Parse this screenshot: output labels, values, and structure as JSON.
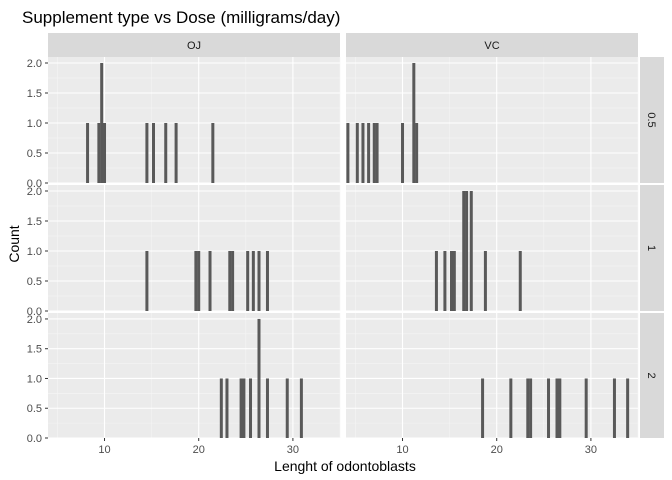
{
  "chart_data": {
    "type": "bar",
    "subtype": "histogram-faceted",
    "title": "Supplement type vs Dose (milligrams/day)",
    "xlabel": "Lenght of odontoblasts",
    "ylabel": "Count",
    "xlim": [
      4,
      35
    ],
    "ylim": [
      0,
      2.1
    ],
    "xticks": [
      10,
      20,
      30
    ],
    "yticks": [
      0,
      0.5,
      1,
      1.5,
      2
    ],
    "ytick_labels": [
      "0.0",
      "0.5",
      "1.0",
      "1.5",
      "2.0"
    ],
    "grid": true,
    "colors": {
      "bar": "#595959",
      "panel": "#ebebeb",
      "strip": "#d9d9d9",
      "grid": "#ffffff"
    },
    "columns": [
      "OJ",
      "VC"
    ],
    "rows": [
      "0.5",
      "1",
      "2"
    ],
    "panels": [
      {
        "supp": "OJ",
        "dose": "0.5",
        "x": [
          8.2,
          9.4,
          9.7,
          10.0,
          14.5,
          15.2,
          16.5,
          17.6,
          21.5
        ],
        "counts": [
          1,
          1,
          2,
          1,
          1,
          1,
          1,
          1,
          1
        ]
      },
      {
        "supp": "VC",
        "dose": "0.5",
        "x": [
          4.2,
          5.2,
          5.8,
          6.4,
          7.0,
          7.3,
          10.0,
          11.2,
          11.5
        ],
        "counts": [
          1,
          1,
          1,
          1,
          1,
          1,
          1,
          2,
          1
        ]
      },
      {
        "supp": "OJ",
        "dose": "1",
        "x": [
          14.5,
          19.7,
          20.0,
          21.2,
          23.3,
          23.6,
          25.2,
          25.8,
          26.4,
          27.3
        ],
        "counts": [
          1,
          1,
          1,
          1,
          1,
          1,
          1,
          1,
          1,
          1
        ]
      },
      {
        "supp": "VC",
        "dose": "1",
        "x": [
          13.6,
          14.5,
          15.2,
          15.5,
          16.5,
          16.8,
          17.3,
          18.8,
          22.5
        ],
        "counts": [
          1,
          1,
          1,
          1,
          2,
          2,
          2,
          1,
          1
        ]
      },
      {
        "supp": "OJ",
        "dose": "2",
        "x": [
          22.4,
          23.0,
          24.5,
          24.8,
          25.5,
          26.4,
          27.3,
          29.4,
          30.9
        ],
        "counts": [
          1,
          1,
          1,
          1,
          1,
          2,
          1,
          1,
          1
        ]
      },
      {
        "supp": "VC",
        "dose": "2",
        "x": [
          18.5,
          21.5,
          23.3,
          23.6,
          25.5,
          26.4,
          26.7,
          29.5,
          32.5,
          33.9
        ],
        "counts": [
          1,
          1,
          1,
          1,
          1,
          1,
          1,
          1,
          1,
          1
        ]
      }
    ]
  }
}
